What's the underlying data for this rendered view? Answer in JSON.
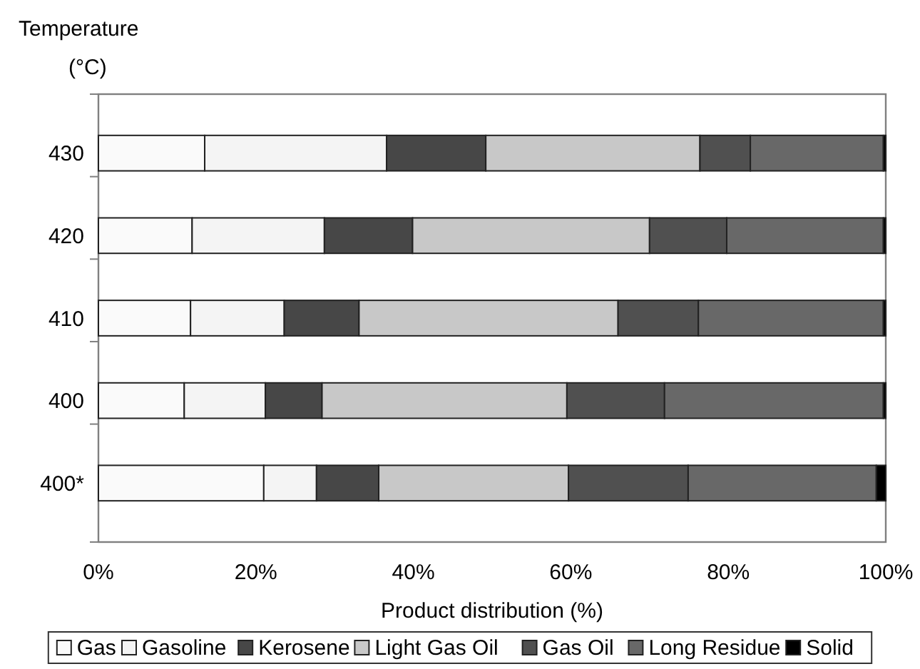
{
  "chart_data": {
    "type": "bar",
    "orientation": "horizontal",
    "stacked": true,
    "ylabel": "Temperature (°C)",
    "xlabel": "Product distribution (%)",
    "categories": [
      "430",
      "420",
      "410",
      "400",
      "400*"
    ],
    "xlim": [
      0,
      100
    ],
    "xticks": [
      {
        "value": 0,
        "label": "0%"
      },
      {
        "value": 20,
        "label": "20%"
      },
      {
        "value": 40,
        "label": "40%"
      },
      {
        "value": 60,
        "label": "60%"
      },
      {
        "value": 80,
        "label": "80%"
      },
      {
        "value": 100,
        "label": "100%"
      }
    ],
    "grid": false,
    "legend": "bottom",
    "series": [
      {
        "name": "Gas",
        "color": "#fafafa",
        "values": [
          13.5,
          11.9,
          11.7,
          10.9,
          21.0
        ]
      },
      {
        "name": "Gasoline",
        "color": "#f4f4f4",
        "values": [
          23.1,
          16.8,
          11.9,
          10.3,
          6.7
        ]
      },
      {
        "name": "Kerosene",
        "color": "#474747",
        "values": [
          12.6,
          11.2,
          9.5,
          7.2,
          7.9
        ]
      },
      {
        "name": "Light Gas Oil",
        "color": "#c8c8c8",
        "values": [
          27.2,
          30.1,
          32.9,
          31.1,
          24.1
        ]
      },
      {
        "name": "Gas Oil",
        "color": "#505050",
        "values": [
          6.4,
          9.8,
          10.2,
          12.4,
          15.2
        ]
      },
      {
        "name": "Long Residue",
        "color": "#686868",
        "values": [
          16.9,
          19.9,
          23.5,
          27.8,
          23.9
        ]
      },
      {
        "name": "Solid",
        "color": "#000000",
        "values": [
          0.3,
          0.3,
          0.3,
          0.3,
          1.2
        ]
      }
    ]
  }
}
